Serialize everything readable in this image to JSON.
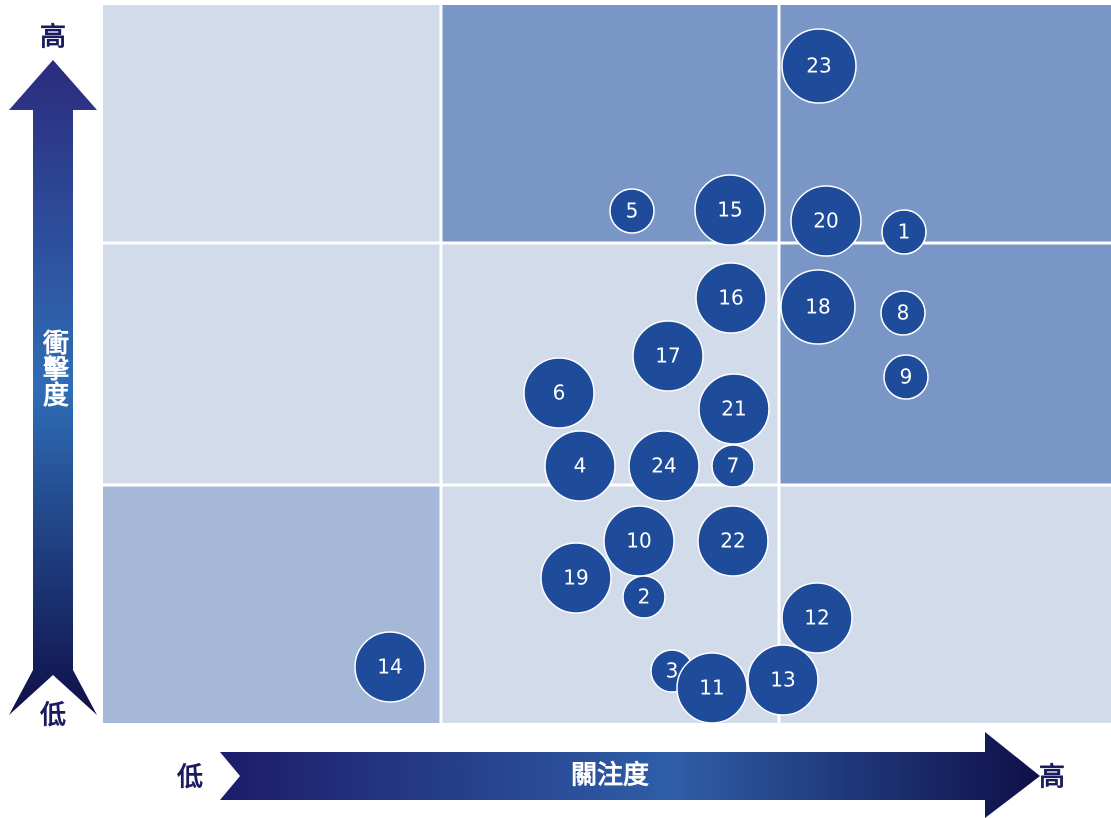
{
  "y_axis": {
    "label": "衝擊度",
    "high": "高",
    "low": "低"
  },
  "x_axis": {
    "label": "關注度",
    "high": "高",
    "low": "低"
  },
  "nodes": [
    {
      "label": "23"
    },
    {
      "label": "5"
    },
    {
      "label": "15"
    },
    {
      "label": "20"
    },
    {
      "label": "1"
    },
    {
      "label": "16"
    },
    {
      "label": "18"
    },
    {
      "label": "8"
    },
    {
      "label": "9"
    },
    {
      "label": "17"
    },
    {
      "label": "6"
    },
    {
      "label": "21"
    },
    {
      "label": "4"
    },
    {
      "label": "24"
    },
    {
      "label": "7"
    },
    {
      "label": "10"
    },
    {
      "label": "22"
    },
    {
      "label": "19"
    },
    {
      "label": "2"
    },
    {
      "label": "12"
    },
    {
      "label": "14"
    },
    {
      "label": "3"
    },
    {
      "label": "11"
    },
    {
      "label": "13"
    }
  ]
}
